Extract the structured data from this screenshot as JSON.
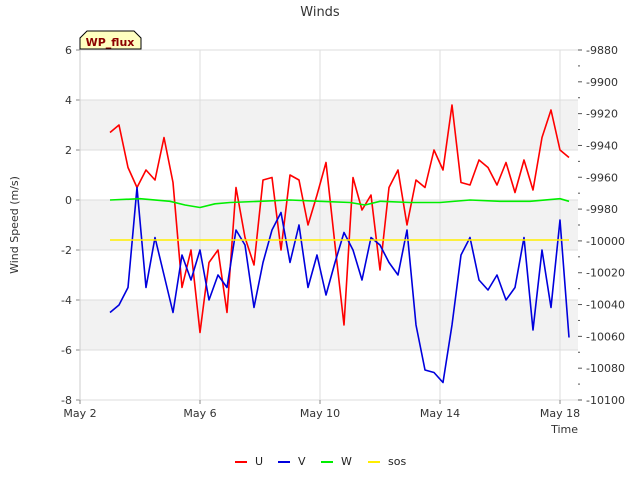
{
  "chart_data": {
    "type": "line",
    "title": "Winds",
    "badge": "WP_flux",
    "xlabel": "Time",
    "ylabel": "Wind Speed (m/s)",
    "xlim": [
      2,
      18.6
    ],
    "ylim": [
      -8,
      6
    ],
    "y2lim": [
      -10100,
      -9880
    ],
    "x_ticks": [
      {
        "value": 2,
        "label": "May 2"
      },
      {
        "value": 6,
        "label": "May 6"
      },
      {
        "value": 10,
        "label": "May 10"
      },
      {
        "value": 14,
        "label": "May 14"
      },
      {
        "value": 18,
        "label": "May 18"
      }
    ],
    "y_ticks": [
      -8,
      -6,
      -4,
      -2,
      0,
      2,
      4,
      6
    ],
    "y2_ticks": [
      -10100,
      -10080,
      -10060,
      -10040,
      -10020,
      -10000,
      -9980,
      -9960,
      -9940,
      -9920,
      -9900,
      -9880
    ],
    "bands": [
      [
        -6,
        -4
      ],
      [
        -2,
        0
      ],
      [
        2,
        4
      ]
    ],
    "legend": [
      "U",
      "V",
      "W",
      "sos"
    ],
    "series": [
      {
        "name": "U",
        "color": "#ff0000",
        "x": [
          3.0,
          3.3,
          3.6,
          3.9,
          4.2,
          4.5,
          4.8,
          5.1,
          5.4,
          5.7,
          6.0,
          6.3,
          6.6,
          6.9,
          7.2,
          7.5,
          7.8,
          8.1,
          8.4,
          8.7,
          9.0,
          9.3,
          9.6,
          9.9,
          10.2,
          10.5,
          10.8,
          11.1,
          11.4,
          11.7,
          12.0,
          12.3,
          12.6,
          12.9,
          13.2,
          13.5,
          13.8,
          14.1,
          14.4,
          14.7,
          15.0,
          15.3,
          15.6,
          15.9,
          16.2,
          16.5,
          16.8,
          17.1,
          17.4,
          17.7,
          18.0,
          18.3
        ],
        "values": [
          2.7,
          3.0,
          1.3,
          0.5,
          1.2,
          0.8,
          2.5,
          0.7,
          -3.5,
          -2.0,
          -5.3,
          -2.5,
          -2.0,
          -4.5,
          0.5,
          -1.5,
          -2.6,
          0.8,
          0.9,
          -2.0,
          1.0,
          0.8,
          -1.0,
          0.2,
          1.5,
          -1.8,
          -5.0,
          0.9,
          -0.4,
          0.2,
          -2.8,
          0.5,
          1.2,
          -1.0,
          0.8,
          0.5,
          2.0,
          1.2,
          3.8,
          0.7,
          0.6,
          1.6,
          1.3,
          0.6,
          1.5,
          0.3,
          1.6,
          0.4,
          2.5,
          3.6,
          2.0,
          1.7
        ]
      },
      {
        "name": "V",
        "color": "#0000dd",
        "x": [
          3.0,
          3.3,
          3.6,
          3.9,
          4.2,
          4.5,
          4.8,
          5.1,
          5.4,
          5.7,
          6.0,
          6.3,
          6.6,
          6.9,
          7.2,
          7.5,
          7.8,
          8.1,
          8.4,
          8.7,
          9.0,
          9.3,
          9.6,
          9.9,
          10.2,
          10.5,
          10.8,
          11.1,
          11.4,
          11.7,
          12.0,
          12.3,
          12.6,
          12.9,
          13.2,
          13.5,
          13.8,
          14.1,
          14.4,
          14.7,
          15.0,
          15.3,
          15.6,
          15.9,
          16.2,
          16.5,
          16.8,
          17.1,
          17.4,
          17.7,
          18.0,
          18.3
        ],
        "values": [
          -4.5,
          -4.2,
          -3.5,
          0.5,
          -3.5,
          -1.5,
          -3.0,
          -4.5,
          -2.2,
          -3.2,
          -2.0,
          -4.0,
          -3.0,
          -3.5,
          -1.2,
          -1.8,
          -4.3,
          -2.5,
          -1.2,
          -0.5,
          -2.5,
          -1.0,
          -3.5,
          -2.2,
          -3.8,
          -2.5,
          -1.3,
          -2.0,
          -3.2,
          -1.5,
          -1.8,
          -2.5,
          -3.0,
          -1.2,
          -5.0,
          -6.8,
          -6.9,
          -7.3,
          -5.0,
          -2.2,
          -1.5,
          -3.2,
          -3.6,
          -3.0,
          -4.0,
          -3.5,
          -1.5,
          -5.2,
          -2.0,
          -4.3,
          -0.8,
          -5.5
        ]
      },
      {
        "name": "W",
        "color": "#00ee00",
        "x": [
          3.0,
          4.0,
          5.0,
          5.5,
          6.0,
          6.5,
          7.0,
          8.0,
          9.0,
          10.0,
          11.0,
          11.5,
          12.0,
          13.0,
          14.0,
          15.0,
          16.0,
          17.0,
          18.0,
          18.3
        ],
        "values": [
          0.0,
          0.05,
          -0.05,
          -0.2,
          -0.3,
          -0.15,
          -0.1,
          -0.05,
          0.0,
          -0.05,
          -0.1,
          -0.2,
          -0.05,
          -0.1,
          -0.1,
          0.0,
          -0.05,
          -0.05,
          0.05,
          -0.05
        ]
      },
      {
        "name": "sos",
        "color": "#ffee00",
        "x": [
          3.0,
          18.3
        ],
        "values": [
          -1.6,
          -1.6
        ]
      }
    ]
  }
}
